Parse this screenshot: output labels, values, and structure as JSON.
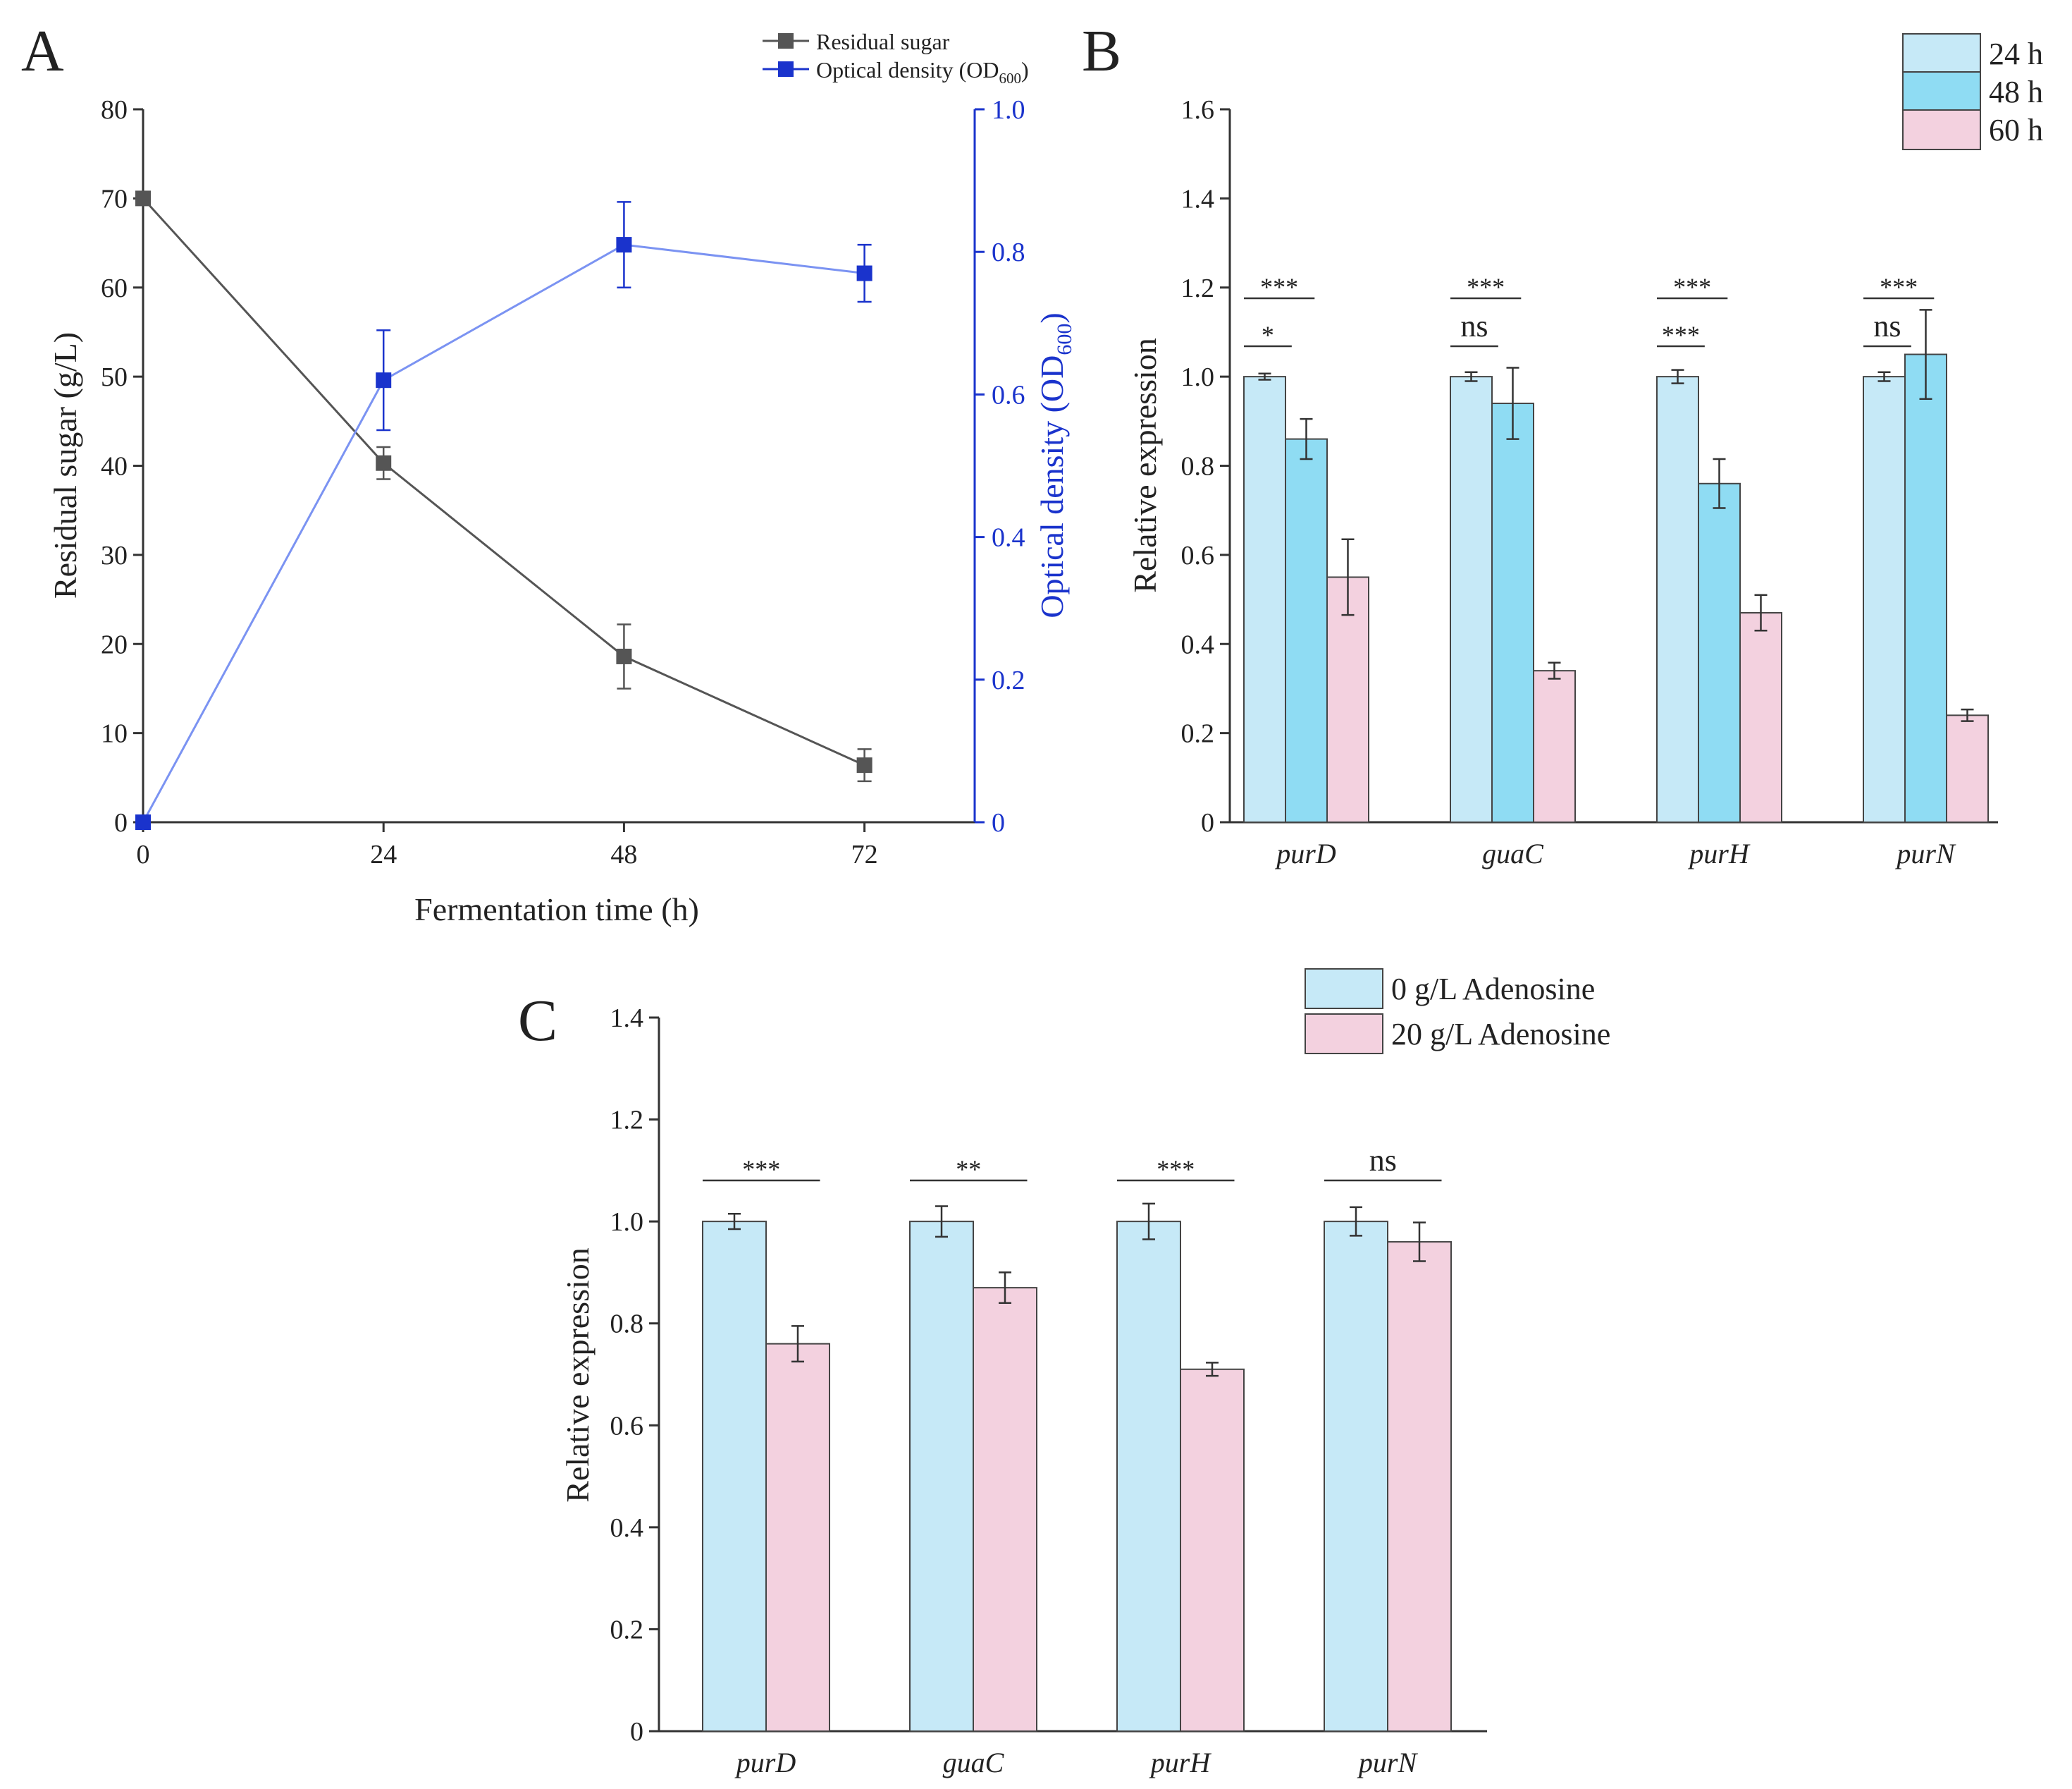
{
  "panels": {
    "A": {
      "label": "A"
    },
    "B": {
      "label": "B"
    },
    "C": {
      "label": "C"
    }
  },
  "colors": {
    "sugar": "#555555",
    "od": "#1a33cc",
    "od_line": "#7b93f2",
    "bar_24h": "#c6e9f7",
    "bar_48h": "#8fdcf3",
    "bar_60h": "#f3d1df",
    "bar_0g": "#c6e9f7",
    "bar_20g": "#f3d1df",
    "axis": "#333333"
  },
  "chart_data": [
    {
      "id": "A",
      "type": "line",
      "x": [
        0,
        24,
        48,
        72
      ],
      "xticks": [
        "0",
        "24",
        "48",
        "72"
      ],
      "xlim": [
        0,
        83
      ],
      "xlabel": "Fermentation time (h)",
      "ylabel_left": "Residual sugar (g/L)",
      "ylabel_right_main": "Optical density (OD",
      "ylabel_right_sub": "600",
      "ylabel_right_close": ")",
      "ylim_left": [
        0,
        80
      ],
      "yticks_left": [
        "0",
        "10",
        "20",
        "30",
        "40",
        "50",
        "60",
        "70",
        "80"
      ],
      "ylim_right": [
        0,
        1.0
      ],
      "yticks_right": [
        "0",
        "0.2",
        "0.4",
        "0.6",
        "0.8",
        "1.0"
      ],
      "legend_sugar": "Residual sugar",
      "legend_od_main": "Optical density (OD",
      "legend_od_sub": "600",
      "legend_od_close": ")",
      "series": [
        {
          "name": "Residual sugar",
          "axis": "left",
          "values": [
            70,
            40.3,
            18.6,
            6.4
          ],
          "errors": [
            0.3,
            1.8,
            3.6,
            1.8
          ]
        },
        {
          "name": "Optical density (OD600)",
          "axis": "right",
          "values": [
            0,
            0.62,
            0.81,
            0.77
          ],
          "errors": [
            0,
            0.07,
            0.06,
            0.04
          ]
        }
      ]
    },
    {
      "id": "B",
      "type": "bar",
      "categories": [
        "purD",
        "guaC",
        "purH",
        "purN"
      ],
      "ylabel": "Relative expression",
      "ylim": [
        0,
        1.6
      ],
      "yticks": [
        "0",
        "0.2",
        "0.4",
        "0.6",
        "0.8",
        "1.0",
        "1.2",
        "1.4",
        "1.6"
      ],
      "legend_location": "top-right",
      "series": [
        {
          "name": "24 h",
          "values": [
            1.0,
            1.0,
            1.0,
            1.0
          ],
          "errors": [
            0.007,
            0.01,
            0.015,
            0.01
          ]
        },
        {
          "name": "48 h",
          "values": [
            0.86,
            0.94,
            0.76,
            1.05
          ],
          "errors": [
            0.045,
            0.08,
            0.055,
            0.1
          ]
        },
        {
          "name": "60 h",
          "values": [
            0.55,
            0.34,
            0.47,
            0.24
          ],
          "errors": [
            0.085,
            0.018,
            0.04,
            0.013
          ]
        }
      ],
      "significance": [
        {
          "category": "purD",
          "pair": "24 h-48 h",
          "label": "*"
        },
        {
          "category": "purD",
          "pair": "24 h-60 h",
          "label": "***"
        },
        {
          "category": "guaC",
          "pair": "24 h-48 h",
          "label": "ns"
        },
        {
          "category": "guaC",
          "pair": "24 h-60 h",
          "label": "***"
        },
        {
          "category": "purH",
          "pair": "24 h-48 h",
          "label": "***"
        },
        {
          "category": "purH",
          "pair": "24 h-60 h",
          "label": "***"
        },
        {
          "category": "purN",
          "pair": "24 h-48 h",
          "label": "ns"
        },
        {
          "category": "purN",
          "pair": "24 h-60 h",
          "label": "***"
        }
      ]
    },
    {
      "id": "C",
      "type": "bar",
      "categories": [
        "purD",
        "guaC",
        "purH",
        "purN"
      ],
      "ylabel": "Relative expression",
      "ylim": [
        0,
        1.4
      ],
      "yticks": [
        "0",
        "0.2",
        "0.4",
        "0.6",
        "0.8",
        "1.0",
        "1.2",
        "1.4"
      ],
      "legend_location": "top-right",
      "series": [
        {
          "name": "0 g/L Adenosine",
          "values": [
            1.0,
            1.0,
            1.0,
            1.0
          ],
          "errors": [
            0.015,
            0.03,
            0.035,
            0.028
          ]
        },
        {
          "name": "20 g/L Adenosine",
          "values": [
            0.76,
            0.87,
            0.71,
            0.96
          ],
          "errors": [
            0.035,
            0.03,
            0.013,
            0.038
          ]
        }
      ],
      "significance": [
        {
          "category": "purD",
          "label": "***"
        },
        {
          "category": "guaC",
          "label": "**"
        },
        {
          "category": "purH",
          "label": "***"
        },
        {
          "category": "purN",
          "label": "ns"
        }
      ]
    }
  ]
}
